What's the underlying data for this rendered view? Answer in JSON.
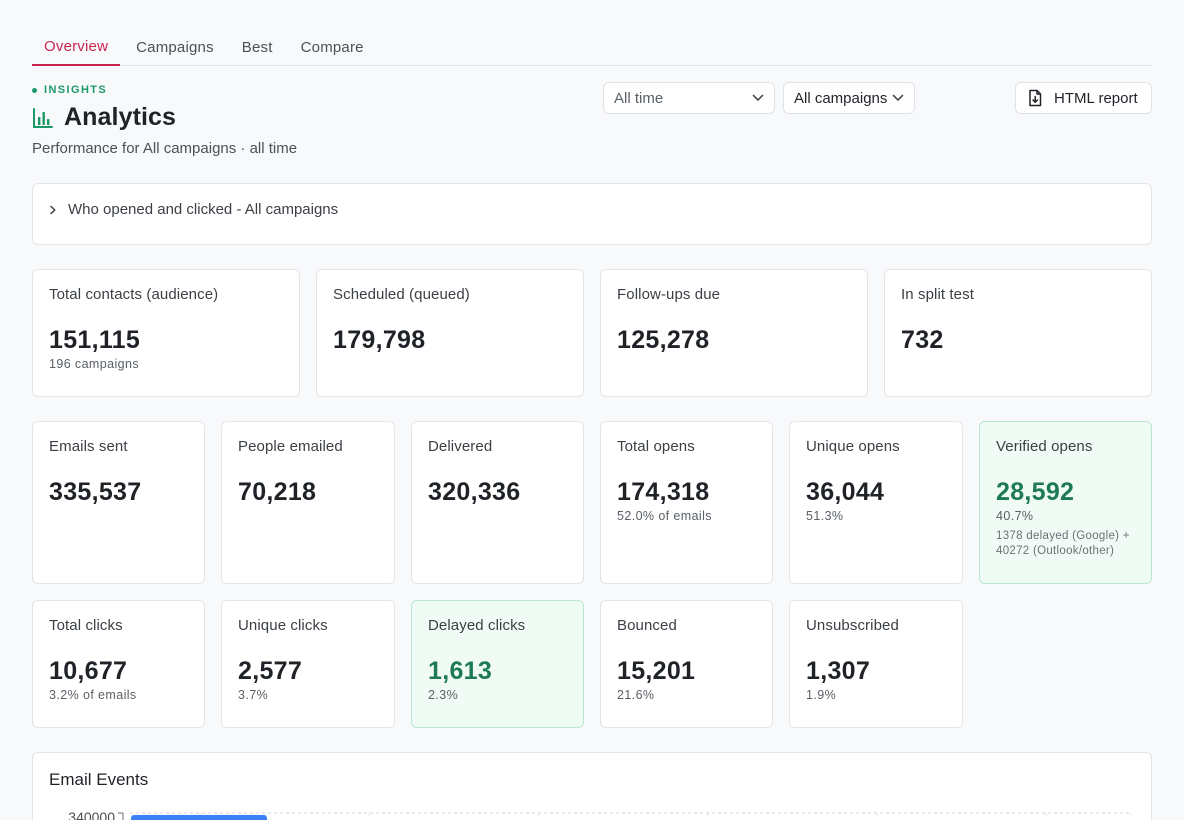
{
  "tabs": [
    "Overview",
    "Campaigns",
    "Best",
    "Compare"
  ],
  "header": {
    "eyebrow": "INSIGHTS",
    "title": "Analytics",
    "subtitle": "Performance for All campaigns · all time"
  },
  "filters": {
    "range": "All time",
    "campaign": "All campaigns",
    "report_button": "HTML report"
  },
  "collapsible": {
    "label": "Who opened and clicked - All campaigns"
  },
  "summary_cards": [
    {
      "label": "Total contacts (audience)",
      "value": "151,115",
      "sub": "196 campaigns"
    },
    {
      "label": "Scheduled (queued)",
      "value": "179,798",
      "sub": ""
    },
    {
      "label": "Follow-ups due",
      "value": "125,278",
      "sub": ""
    },
    {
      "label": "In split test",
      "value": "732",
      "sub": ""
    }
  ],
  "metric_cards": [
    {
      "label": "Emails sent",
      "value": "335,537",
      "sub": ""
    },
    {
      "label": "People emailed",
      "value": "70,218",
      "sub": ""
    },
    {
      "label": "Delivered",
      "value": "320,336",
      "sub": ""
    },
    {
      "label": "Total opens",
      "value": "174,318",
      "sub": "52.0% of emails"
    },
    {
      "label": "Unique opens",
      "value": "36,044",
      "sub": "51.3%"
    },
    {
      "label": "Verified opens",
      "value": "28,592",
      "sub": "40.7%",
      "note": "1378 delayed (Google) + 40272 (Outlook/other)",
      "highlight": true
    }
  ],
  "click_cards": [
    {
      "label": "Total clicks",
      "value": "10,677",
      "sub": "3.2% of emails"
    },
    {
      "label": "Unique clicks",
      "value": "2,577",
      "sub": "3.7%"
    },
    {
      "label": "Delayed clicks",
      "value": "1,613",
      "sub": "2.3%",
      "highlight": true
    },
    {
      "label": "Bounced",
      "value": "15,201",
      "sub": "21.6%"
    },
    {
      "label": "Unsubscribed",
      "value": "1,307",
      "sub": "1.9%"
    }
  ],
  "events_panel": {
    "title": "Email Events",
    "y_tick": "340000"
  },
  "colors": {
    "accent": "#c8244f",
    "positive": "#1d7a55",
    "bar": "#3b82f6"
  },
  "chart_data": {
    "type": "bar",
    "title": "Email Events",
    "ylim_top_tick": 340000,
    "y_ticks": [
      340000
    ],
    "grid": true
  }
}
